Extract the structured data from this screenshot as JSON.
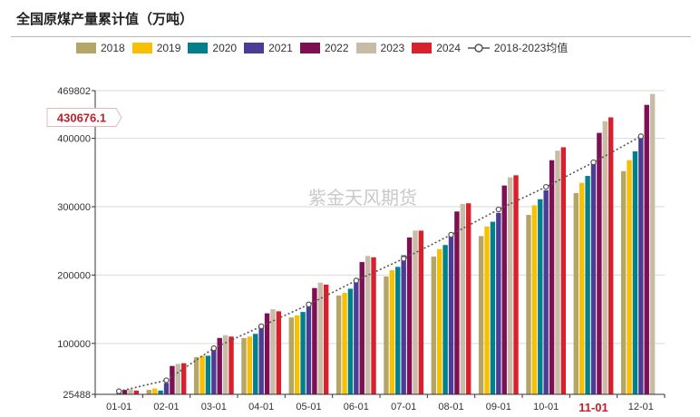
{
  "title": "全国原煤产量累计值（万吨）",
  "watermark": "紫金天风期货",
  "colors": {
    "2018": "#b5a567",
    "2019": "#f8c000",
    "2020": "#00808a",
    "2021": "#4b3c96",
    "2022": "#7d0f52",
    "2023": "#c9bca6",
    "2024": "#d9212e",
    "avg": "#555555"
  },
  "callout": "430676.1",
  "highlight_category": "11-01",
  "chart_data": {
    "type": "bar",
    "categories": [
      "01-01",
      "02-01",
      "03-01",
      "04-01",
      "05-01",
      "06-01",
      "07-01",
      "08-01",
      "09-01",
      "10-01",
      "11-01",
      "12-01"
    ],
    "series": [
      {
        "name": "2018",
        "values": [
          null,
          32000,
          80000,
          108000,
          138000,
          170000,
          198000,
          227000,
          257000,
          288000,
          320000,
          352000
        ]
      },
      {
        "name": "2019",
        "values": [
          null,
          34000,
          82000,
          110000,
          141000,
          174000,
          207000,
          238000,
          271000,
          302000,
          335000,
          368000
        ]
      },
      {
        "name": "2020",
        "values": [
          null,
          31000,
          82000,
          114000,
          146000,
          180000,
          212000,
          244000,
          278000,
          311000,
          345000,
          381000
        ]
      },
      {
        "name": "2021",
        "values": [
          28500,
          42000,
          95000,
          128000,
          160000,
          193000,
          229000,
          259000,
          291000,
          324000,
          364000,
          403000
        ]
      },
      {
        "name": "2022",
        "values": [
          32000,
          67000,
          108000,
          144000,
          181000,
          219000,
          255000,
          293000,
          331000,
          368000,
          408000,
          449000
        ]
      },
      {
        "name": "2023",
        "values": [
          33000,
          70000,
          112000,
          150000,
          189000,
          228000,
          265000,
          304000,
          343000,
          382000,
          425000,
          465000
        ]
      },
      {
        "name": "2024",
        "values": [
          31000,
          71000,
          110000,
          147000,
          186000,
          226000,
          265000,
          305000,
          346000,
          387000,
          430676.1,
          null
        ]
      }
    ],
    "average": {
      "name": "2018-2023均值",
      "values": [
        30000,
        46000,
        93000,
        125000,
        157000,
        192000,
        224000,
        259000,
        296000,
        329000,
        365000,
        403000
      ]
    },
    "ylim": [
      25488,
      469802
    ],
    "yticks": [
      25488,
      100000,
      200000,
      300000,
      400000,
      469802
    ],
    "ytick_labels": [
      "25488",
      "100000",
      "200000",
      "300000",
      "400000",
      "469802"
    ],
    "grid": true,
    "legend": "top"
  }
}
